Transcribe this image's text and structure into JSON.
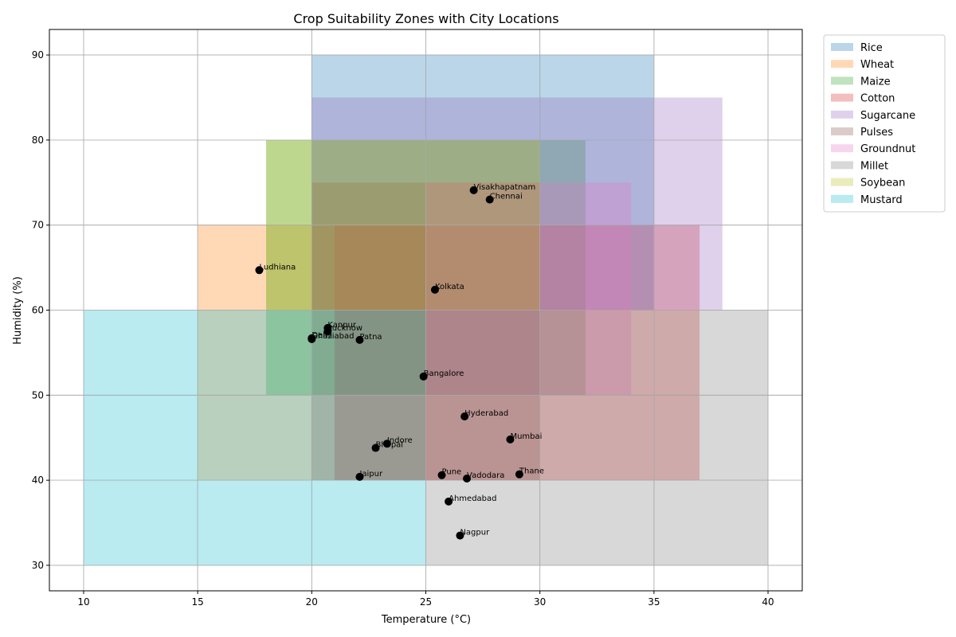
{
  "chart_data": {
    "type": "area",
    "title": "Crop Suitability Zones with City Locations",
    "xlabel": "Temperature (°C)",
    "ylabel": "Humidity (%)",
    "xlim": [
      8.5,
      41.5
    ],
    "ylim": [
      27,
      93
    ],
    "xticks": [
      10,
      15,
      20,
      25,
      30,
      35,
      40
    ],
    "yticks": [
      30,
      40,
      50,
      60,
      70,
      80,
      90
    ],
    "grid": true,
    "legend_position": "outside-top-right",
    "zones": [
      {
        "name": "Rice",
        "color": "#1f77b4",
        "temp": [
          20,
          35
        ],
        "humidity": [
          60,
          90
        ]
      },
      {
        "name": "Wheat",
        "color": "#ff7f0e",
        "temp": [
          15,
          25
        ],
        "humidity": [
          40,
          70
        ]
      },
      {
        "name": "Maize",
        "color": "#2ca02c",
        "temp": [
          18,
          32
        ],
        "humidity": [
          50,
          80
        ]
      },
      {
        "name": "Cotton",
        "color": "#d62728",
        "temp": [
          21,
          37
        ],
        "humidity": [
          40,
          70
        ]
      },
      {
        "name": "Sugarcane",
        "color": "#9467bd",
        "temp": [
          20,
          38
        ],
        "humidity": [
          60,
          85
        ]
      },
      {
        "name": "Pulses",
        "color": "#8c564b",
        "temp": [
          20,
          30
        ],
        "humidity": [
          40,
          75
        ]
      },
      {
        "name": "Groundnut",
        "color": "#e377c2",
        "temp": [
          25,
          34
        ],
        "humidity": [
          50,
          75
        ]
      },
      {
        "name": "Millet",
        "color": "#7f7f7f",
        "temp": [
          25,
          40
        ],
        "humidity": [
          30,
          60
        ]
      },
      {
        "name": "Soybean",
        "color": "#bcbd22",
        "temp": [
          18,
          30
        ],
        "humidity": [
          60,
          80
        ]
      },
      {
        "name": "Mustard",
        "color": "#17becf",
        "temp": [
          10,
          25
        ],
        "humidity": [
          30,
          60
        ]
      }
    ],
    "cities": [
      {
        "name": "Visakhapatnam",
        "x": 27.1,
        "y": 74.1
      },
      {
        "name": "Chennai",
        "x": 27.8,
        "y": 73.0
      },
      {
        "name": "Ludhiana",
        "x": 17.7,
        "y": 64.7
      },
      {
        "name": "Kolkata",
        "x": 25.4,
        "y": 62.4
      },
      {
        "name": "Kanpur",
        "x": 20.7,
        "y": 57.9
      },
      {
        "name": "Lucknow",
        "x": 20.7,
        "y": 57.5
      },
      {
        "name": "Delhi",
        "x": 20.0,
        "y": 56.7
      },
      {
        "name": "Ghaziabad",
        "x": 20.0,
        "y": 56.6
      },
      {
        "name": "Patna",
        "x": 22.1,
        "y": 56.5
      },
      {
        "name": "Bangalore",
        "x": 24.9,
        "y": 52.2
      },
      {
        "name": "Hyderabad",
        "x": 26.7,
        "y": 47.5
      },
      {
        "name": "Mumbai",
        "x": 28.7,
        "y": 44.8
      },
      {
        "name": "Indore",
        "x": 23.3,
        "y": 44.3
      },
      {
        "name": "Bhopal",
        "x": 22.8,
        "y": 43.8
      },
      {
        "name": "Jaipur",
        "x": 22.1,
        "y": 40.4
      },
      {
        "name": "Pune",
        "x": 25.7,
        "y": 40.6
      },
      {
        "name": "Vadodara",
        "x": 26.8,
        "y": 40.2
      },
      {
        "name": "Thane",
        "x": 29.1,
        "y": 40.7
      },
      {
        "name": "Ahmedabad",
        "x": 26.0,
        "y": 37.5
      },
      {
        "name": "Nagpur",
        "x": 26.5,
        "y": 33.5
      }
    ]
  }
}
